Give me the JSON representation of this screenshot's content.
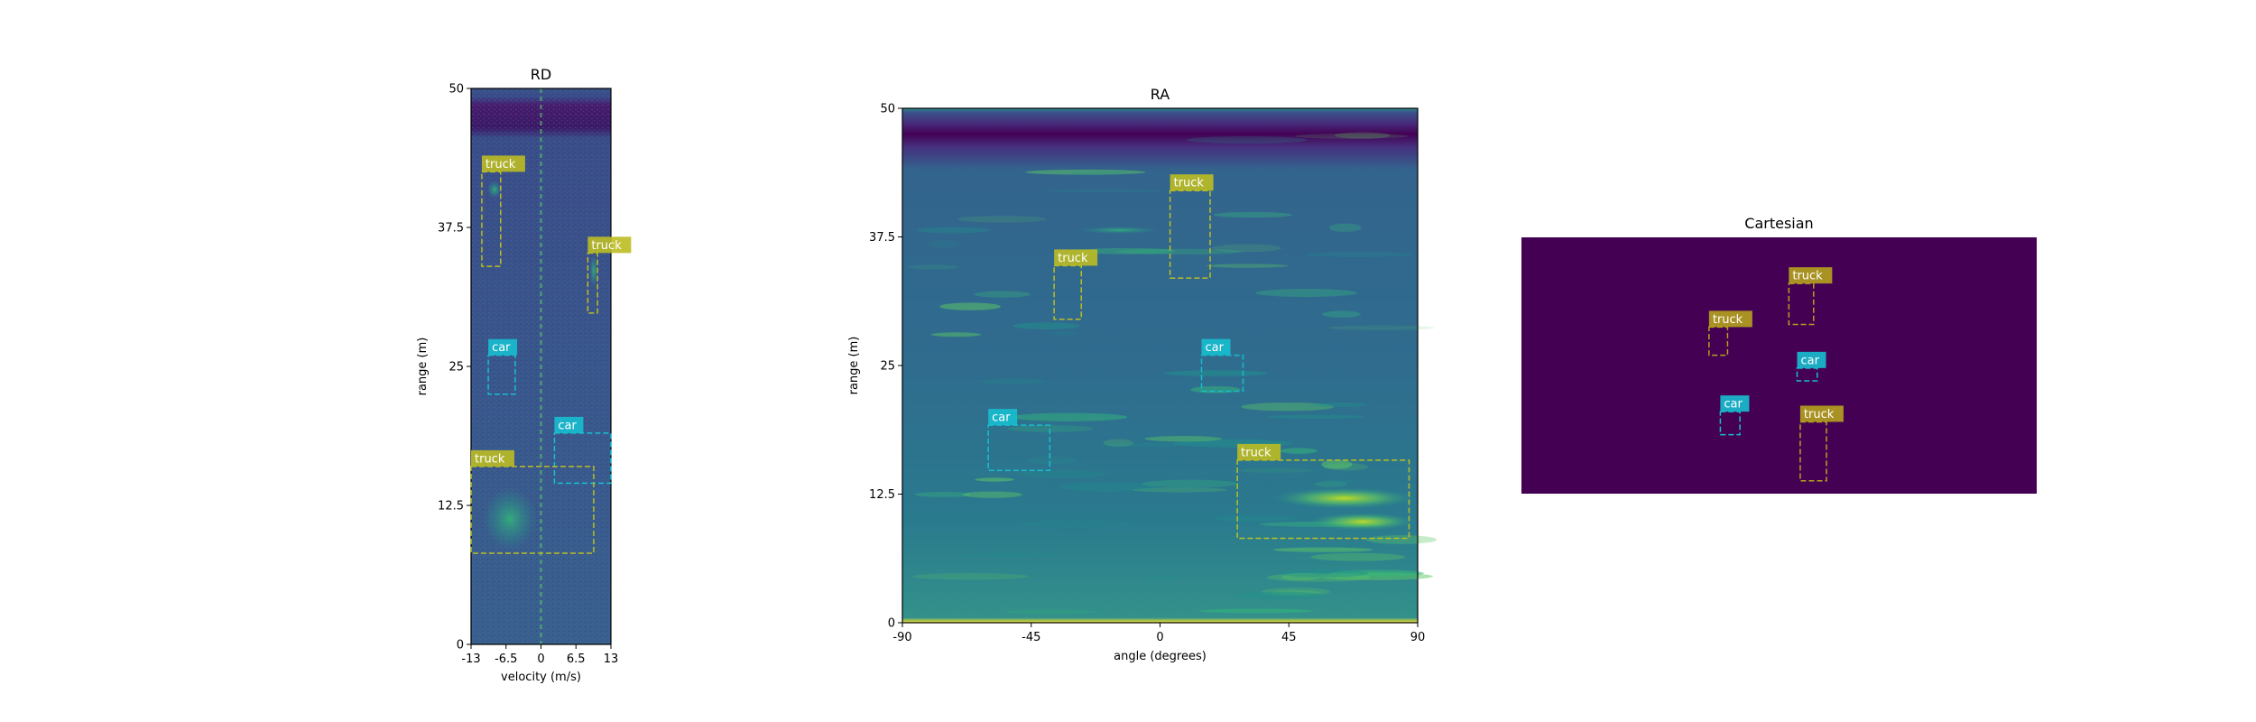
{
  "colors": {
    "heat_low": "#440154",
    "heat_mid": "#3b528b",
    "heat_teal": "#21918c",
    "heat_green": "#5ec962",
    "heat_high": "#fde725",
    "car": "#17becf",
    "truck": "#bcbd22",
    "truck_dark": "#b5a21e",
    "background": "#ffffff"
  },
  "chart_data": [
    {
      "type": "heatmap",
      "title": "RD",
      "xlabel": "velocity (m/s)",
      "ylabel": "range (m)",
      "xlim": [
        -13,
        13
      ],
      "ylim": [
        0,
        50
      ],
      "xticks": [
        "-13",
        "-6.5",
        "0",
        "6.5",
        "13"
      ],
      "yticks": [
        "0",
        "12.5",
        "25",
        "37.5",
        "50"
      ],
      "detections": [
        {
          "label": "truck",
          "x0": -11,
          "x1": -7.5,
          "y0": 34,
          "y1": 42.5
        },
        {
          "label": "truck",
          "x0": 8.7,
          "x1": 10.5,
          "y0": 29.8,
          "y1": 35.2
        },
        {
          "label": "car",
          "x0": -9.8,
          "x1": -4.8,
          "y0": 22.5,
          "y1": 26
        },
        {
          "label": "car",
          "x0": 2.5,
          "x1": 13,
          "y0": 14.5,
          "y1": 19
        },
        {
          "label": "truck",
          "x0": -13,
          "x1": 9.8,
          "y0": 8.2,
          "y1": 16
        }
      ]
    },
    {
      "type": "heatmap",
      "title": "RA",
      "xlabel": "angle (degrees)",
      "ylabel": "range (m)",
      "xlim": [
        -90,
        90
      ],
      "ylim": [
        0,
        50
      ],
      "xticks": [
        "-90",
        "-45",
        "0",
        "45",
        "90"
      ],
      "yticks": [
        "0",
        "12.5",
        "25",
        "37.5",
        "50"
      ],
      "detections": [
        {
          "label": "truck",
          "x0": 3.5,
          "x1": 17.5,
          "y0": 33.5,
          "y1": 42
        },
        {
          "label": "truck",
          "x0": -37,
          "x1": -27.5,
          "y0": 29.5,
          "y1": 34.7
        },
        {
          "label": "car",
          "x0": 14.5,
          "x1": 29,
          "y0": 22.5,
          "y1": 26
        },
        {
          "label": "car",
          "x0": -60,
          "x1": -38.5,
          "y0": 14.8,
          "y1": 19.2
        },
        {
          "label": "truck",
          "x0": 27,
          "x1": 87,
          "y0": 8.2,
          "y1": 15.8
        }
      ]
    },
    {
      "type": "heatmap",
      "title": "Cartesian",
      "xlim": [
        0,
        1
      ],
      "ylim": [
        0,
        1
      ],
      "detections": [
        {
          "label": "truck",
          "x0": 0.519,
          "x1": 0.567,
          "y0": 0.66,
          "y1": 0.82
        },
        {
          "label": "truck",
          "x0": 0.364,
          "x1": 0.4,
          "y0": 0.54,
          "y1": 0.65
        },
        {
          "label": "car",
          "x0": 0.535,
          "x1": 0.574,
          "y0": 0.44,
          "y1": 0.49
        },
        {
          "label": "car",
          "x0": 0.386,
          "x1": 0.424,
          "y0": 0.23,
          "y1": 0.32
        },
        {
          "label": "truck",
          "x0": 0.541,
          "x1": 0.592,
          "y0": 0.05,
          "y1": 0.28
        }
      ]
    }
  ]
}
